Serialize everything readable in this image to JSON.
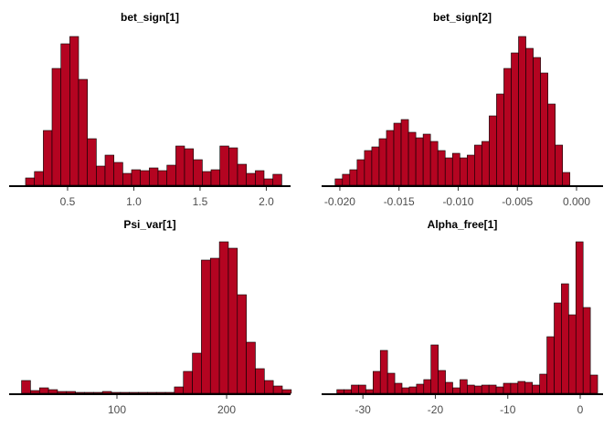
{
  "chart_data": [
    {
      "type": "histogram",
      "title": "bet_sign[1]",
      "color": "#b40421",
      "bins": [
        0.183,
        0.25,
        0.317,
        0.383,
        0.45,
        0.517,
        0.583,
        0.65,
        0.717,
        0.783,
        0.85,
        0.917,
        0.983,
        1.05,
        1.117,
        1.183,
        1.25,
        1.317,
        1.383,
        1.45,
        1.517,
        1.583,
        1.65,
        1.717,
        1.783,
        1.85,
        1.917,
        1.983,
        2.05,
        2.117
      ],
      "counts": [
        8,
        15,
        60,
        128,
        155,
        163,
        116,
        51,
        21,
        33,
        25,
        13,
        17,
        16,
        19,
        16,
        22,
        43,
        40,
        28,
        15,
        17,
        43,
        41,
        23,
        13,
        16,
        7,
        12
      ],
      "xlim": [
        0.059,
        2.183
      ],
      "ylim": [
        0,
        163
      ],
      "xticks": [
        0.5,
        {
          "value": 1,
          "label": "1.0"
        },
        1.5,
        {
          "value": 2,
          "label": "2.0"
        }
      ]
    },
    {
      "type": "histogram",
      "title": "bet_sign[2]",
      "color": "#b40421",
      "bins": [
        -0.0204,
        -0.01978,
        -0.01916,
        -0.01854,
        -0.01792,
        -0.0173,
        -0.01668,
        -0.01606,
        -0.01544,
        -0.01482,
        -0.0142,
        -0.01358,
        -0.01296,
        -0.01234,
        -0.01172,
        -0.0111,
        -0.01048,
        -0.00986,
        -0.00924,
        -0.00862,
        -0.008,
        -0.00738,
        -0.00676,
        -0.00614,
        -0.00552,
        -0.0049,
        -0.00428,
        -0.00366,
        -0.00304,
        -0.00242,
        -0.0018,
        -0.00118,
        -0.00056
      ],
      "counts": [
        7,
        12,
        17,
        28,
        38,
        42,
        51,
        60,
        68,
        72,
        58,
        52,
        56,
        48,
        38,
        30,
        35,
        30,
        33,
        44,
        48,
        76,
        100,
        128,
        145,
        163,
        150,
        140,
        123,
        89,
        44,
        14
      ],
      "xlim": [
        -0.02154,
        0.00224
      ],
      "ylim": [
        0,
        163
      ],
      "xticks": [
        {
          "value": -0.02,
          "label": "-0.020"
        },
        -0.015,
        {
          "value": -0.01,
          "label": "-0.010"
        },
        -0.005,
        {
          "value": 0,
          "label": "0.000"
        }
      ]
    },
    {
      "type": "histogram",
      "title": "Psi_var[1]",
      "color": "#b40421",
      "bins": [
        13,
        21.2,
        29.4,
        37.6,
        45.8,
        54,
        62.2,
        70.4,
        78.6,
        86.8,
        95,
        103.2,
        111.4,
        119.6,
        127.8,
        136,
        144.2,
        152.4,
        160.6,
        168.8,
        177,
        185.2,
        193.4,
        201.6,
        209.8,
        218,
        226.2,
        234.4,
        242.6,
        250.8,
        259
      ],
      "counts": [
        14,
        3,
        6,
        4,
        2,
        2,
        1,
        1,
        1,
        2,
        1,
        1,
        1,
        1,
        1,
        1,
        1,
        7,
        24,
        44,
        146,
        148,
        166,
        159,
        108,
        56,
        27,
        14,
        8,
        4
      ],
      "xlim": [
        1.7,
        258.3
      ],
      "ylim": [
        0,
        166
      ],
      "xticks": [
        100,
        200
      ]
    },
    {
      "type": "histogram",
      "title": "Alpha_free[1]",
      "color": "#b40421",
      "bins": [
        -33.6,
        -32.6,
        -31.6,
        -30.6,
        -29.6,
        -28.6,
        -27.6,
        -26.6,
        -25.6,
        -24.6,
        -23.6,
        -22.6,
        -21.6,
        -20.6,
        -19.6,
        -18.6,
        -17.6,
        -16.6,
        -15.6,
        -14.6,
        -13.6,
        -12.6,
        -11.6,
        -10.6,
        -9.6,
        -8.6,
        -7.6,
        -6.6,
        -5.6,
        -4.6,
        -3.6,
        -2.6,
        -1.6,
        -0.6,
        0.4,
        1.4,
        2.4
      ],
      "counts": [
        4,
        4,
        9,
        9,
        4,
        24,
        47,
        22,
        11,
        6,
        7,
        10,
        15,
        53,
        25,
        12,
        6,
        15,
        9,
        8,
        9,
        9,
        7,
        11,
        11,
        13,
        12,
        9,
        21,
        62,
        99,
        120,
        86,
        166,
        94,
        20
      ],
      "xlim": [
        -35.7,
        3.15
      ],
      "ylim": [
        0,
        166
      ],
      "xticks": [
        -30,
        -20,
        -10,
        0
      ]
    }
  ]
}
